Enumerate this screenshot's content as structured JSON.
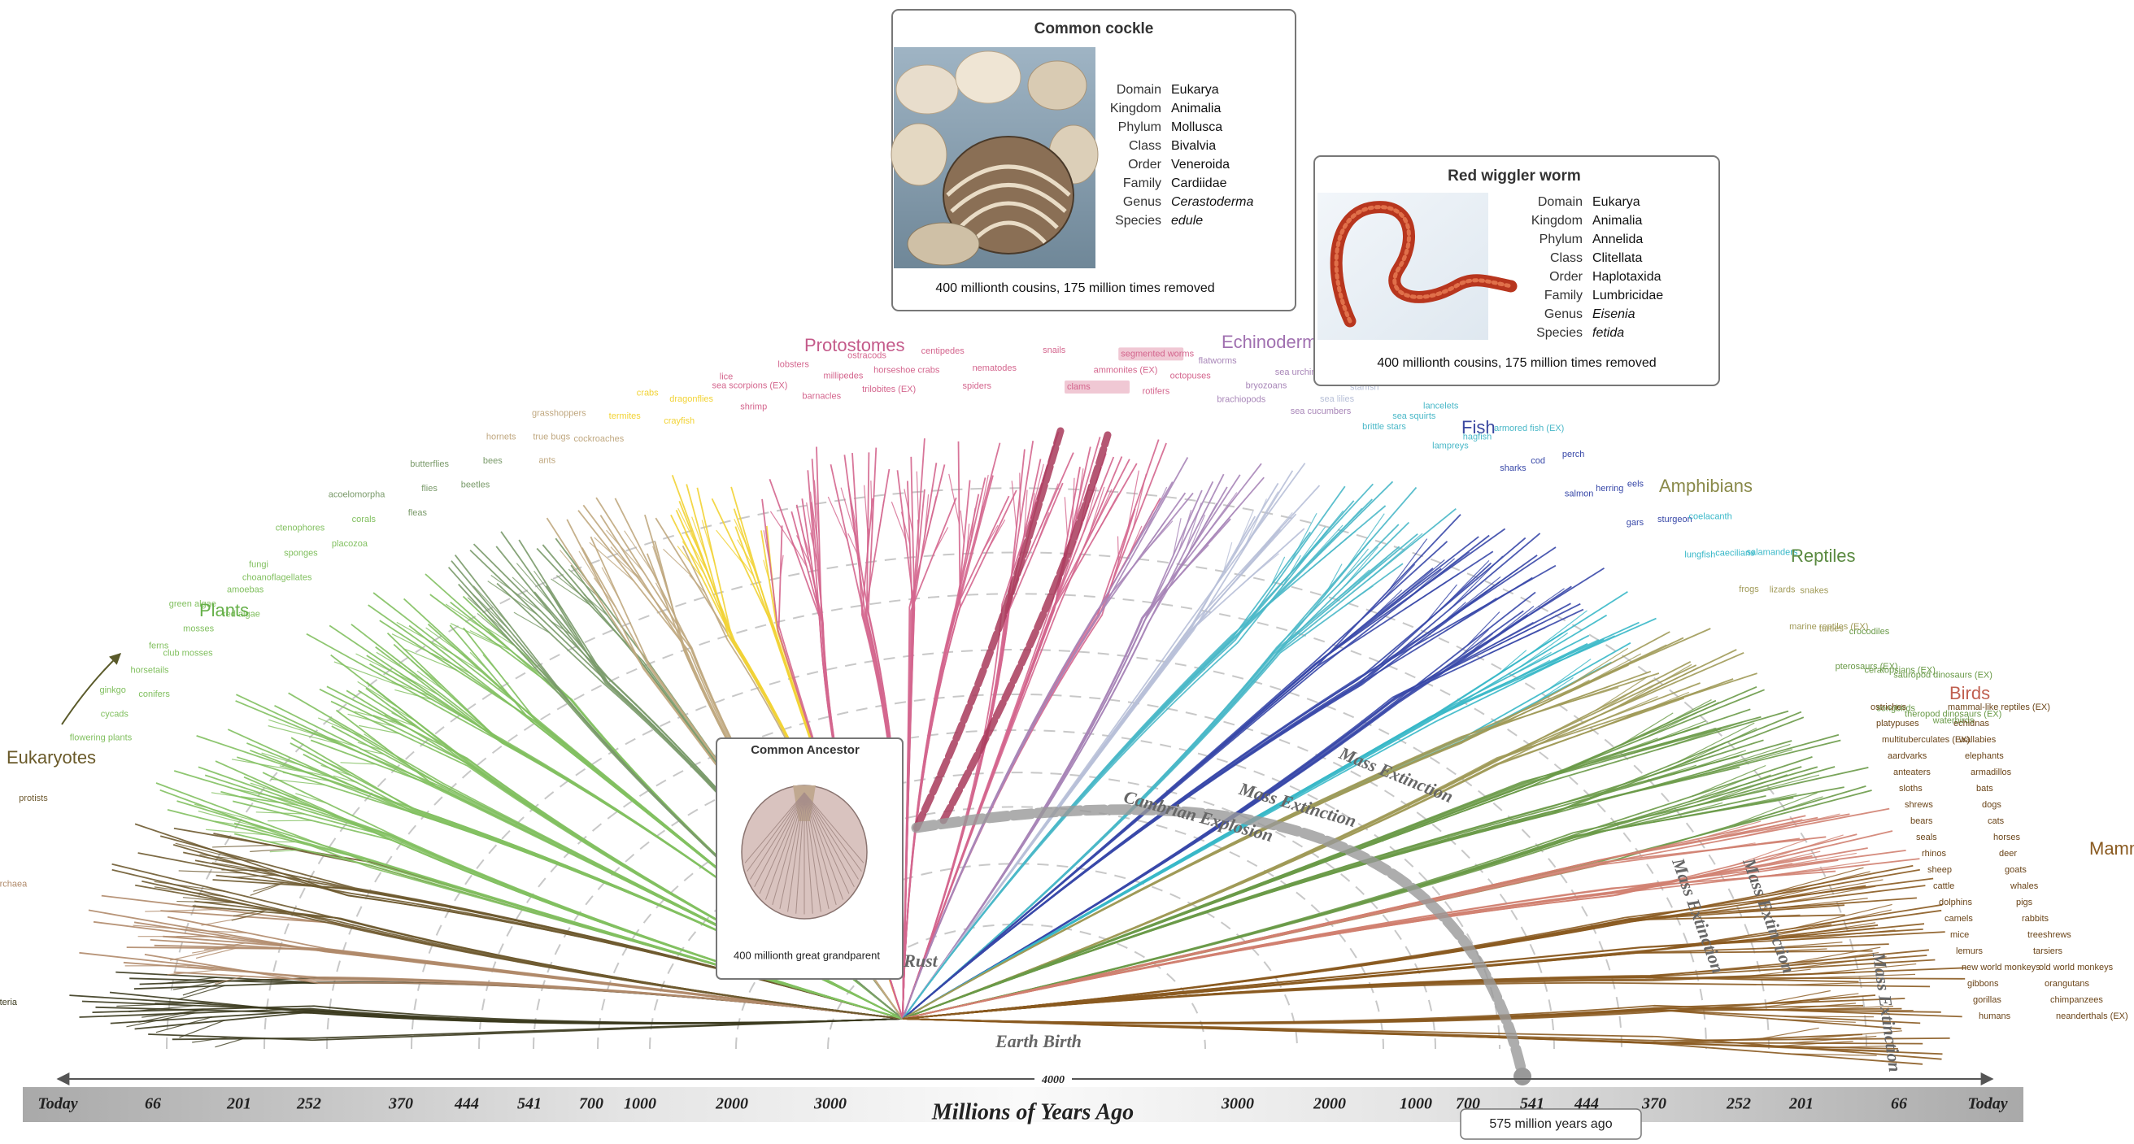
{
  "cards": [
    {
      "title": "Common cockle",
      "rows": [
        {
          "rank": "Domain",
          "value": "Eukarya"
        },
        {
          "rank": "Kingdom",
          "value": "Animalia"
        },
        {
          "rank": "Phylum",
          "value": "Mollusca"
        },
        {
          "rank": "Class",
          "value": "Bivalvia"
        },
        {
          "rank": "Order",
          "value": "Veneroida"
        },
        {
          "rank": "Family",
          "value": "Cardiidae"
        },
        {
          "rank": "Genus",
          "value": "Cerastoderma"
        },
        {
          "rank": "Species",
          "value": "edule"
        }
      ],
      "caption": "400 millionth cousins, 175 million times removed"
    },
    {
      "title": "Red wiggler worm",
      "rows": [
        {
          "rank": "Domain",
          "value": "Eukarya"
        },
        {
          "rank": "Kingdom",
          "value": "Animalia"
        },
        {
          "rank": "Phylum",
          "value": "Annelida"
        },
        {
          "rank": "Class",
          "value": "Clitellata"
        },
        {
          "rank": "Order",
          "value": "Haplotaxida"
        },
        {
          "rank": "Family",
          "value": "Lumbricidae"
        },
        {
          "rank": "Genus",
          "value": "Eisenia"
        },
        {
          "rank": "Species",
          "value": "fetida"
        }
      ],
      "caption": "400 millionth cousins, 175 million times removed"
    }
  ],
  "ancestor": {
    "title": "Common Ancestor",
    "caption": "400 millionth great grandparent"
  },
  "groups": [
    "Eukaryotes",
    "Plants",
    "Protostomes",
    "Echinoderms",
    "Fish",
    "Amphibians",
    "Reptiles",
    "Birds",
    "Mammals"
  ],
  "species": [
    "bacteria",
    "archaea",
    "protists",
    "flowering plants",
    "cycads",
    "ginkgo",
    "conifers",
    "horsetails",
    "ferns",
    "club mosses",
    "mosses",
    "green algae",
    "red algae",
    "amoebas",
    "fungi",
    "choanoflagellates",
    "sponges",
    "ctenophores",
    "placozoa",
    "corals",
    "acoelomorpha",
    "fleas",
    "flies",
    "butterflies",
    "beetles",
    "bees",
    "hornets",
    "ants",
    "true bugs",
    "grasshoppers",
    "cockroaches",
    "termites",
    "crabs",
    "crayfish",
    "dragonflies",
    "lice",
    "shrimp",
    "sea scorpions (EX)",
    "lobsters",
    "barnacles",
    "millipedes",
    "ostracods",
    "trilobites (EX)",
    "horseshoe crabs",
    "centipedes",
    "spiders",
    "nematodes",
    "snails",
    "clams",
    "ammonites (EX)",
    "segmented worms",
    "rotifers",
    "octopuses",
    "flatworms",
    "brachiopods",
    "bryozoans",
    "sea urchins",
    "sea cucumbers",
    "sea lilies",
    "starfish",
    "brittle stars",
    "sea squirts",
    "lancelets",
    "lampreys",
    "hagfish",
    "armored fish (EX)",
    "sharks",
    "cod",
    "perch",
    "salmon",
    "herring",
    "eels",
    "gars",
    "sturgeon",
    "coelacanth",
    "lungfish",
    "caecilians",
    "salamanders",
    "frogs",
    "lizards",
    "snakes",
    "marine reptiles (EX)",
    "turtles",
    "crocodiles",
    "pterosaurs (EX)",
    "ceratopsians (EX)",
    "sauropod dinosaurs (EX)",
    "songbirds",
    "theropod dinosaurs (EX)",
    "waterbirds",
    "ostriches",
    "mammal-like reptiles (EX)",
    "platypuses",
    "echidnas",
    "multituberculates (EX)",
    "wallabies",
    "aardvarks",
    "elephants",
    "anteaters",
    "armadillos",
    "sloths",
    "bats",
    "shrews",
    "dogs",
    "bears",
    "cats",
    "seals",
    "horses",
    "rhinos",
    "deer",
    "sheep",
    "goats",
    "cattle",
    "whales",
    "dolphins",
    "pigs",
    "camels",
    "rabbits",
    "mice",
    "treeshrews",
    "lemurs",
    "tarsiers",
    "new world monkeys",
    "old world monkeys",
    "gibbons",
    "orangutans",
    "gorillas",
    "chimpanzees",
    "humans",
    "neanderthals (EX)"
  ],
  "events": [
    "Earth Birth",
    "Rust",
    "Cambrian Explosion",
    "Mass Extinction",
    "Mass Extinction",
    "Mass Extinction",
    "Mass Extinction",
    "Mass Extinction"
  ],
  "timeline": {
    "left": [
      "Today",
      "66",
      "201",
      "252",
      "370",
      "444",
      "541",
      "700",
      "1000",
      "2000",
      "3000"
    ],
    "center": "4000",
    "right": [
      "3000",
      "2000",
      "1000",
      "700",
      "541",
      "444",
      "370",
      "252",
      "201",
      "66",
      "Today"
    ],
    "title": "Millions of Years Ago",
    "marker": "575 million years ago"
  }
}
